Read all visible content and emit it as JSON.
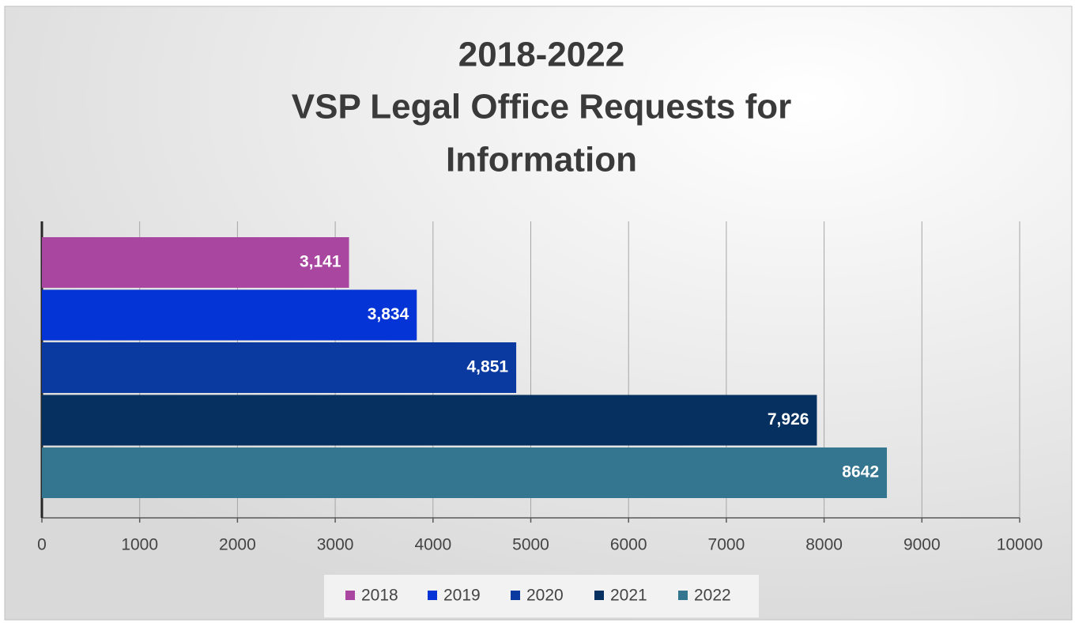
{
  "chart_data": {
    "type": "bar",
    "orientation": "horizontal",
    "title": [
      "2018-2022",
      "VSP Legal Office Requests for",
      "Information"
    ],
    "series": [
      {
        "name": "2018",
        "color": "#a846a0",
        "values": [
          3141
        ],
        "value_labels": [
          "3,141"
        ]
      },
      {
        "name": "2019",
        "color": "#0433d6",
        "values": [
          3834
        ],
        "value_labels": [
          "3,834"
        ]
      },
      {
        "name": "2020",
        "color": "#0a3aa0",
        "values": [
          4851
        ],
        "value_labels": [
          "4,851"
        ]
      },
      {
        "name": "2021",
        "color": "#05305f",
        "values": [
          7926
        ],
        "value_labels": [
          "7,926"
        ]
      },
      {
        "name": "2022",
        "color": "#34758f",
        "values": [
          8642
        ]
      }
    ],
    "xlim": [
      0,
      10000
    ],
    "xticks": [
      0,
      1000,
      2000,
      3000,
      4000,
      5000,
      6000,
      7000,
      8000,
      9000,
      10000
    ],
    "grid": true,
    "legend": "bottom"
  }
}
